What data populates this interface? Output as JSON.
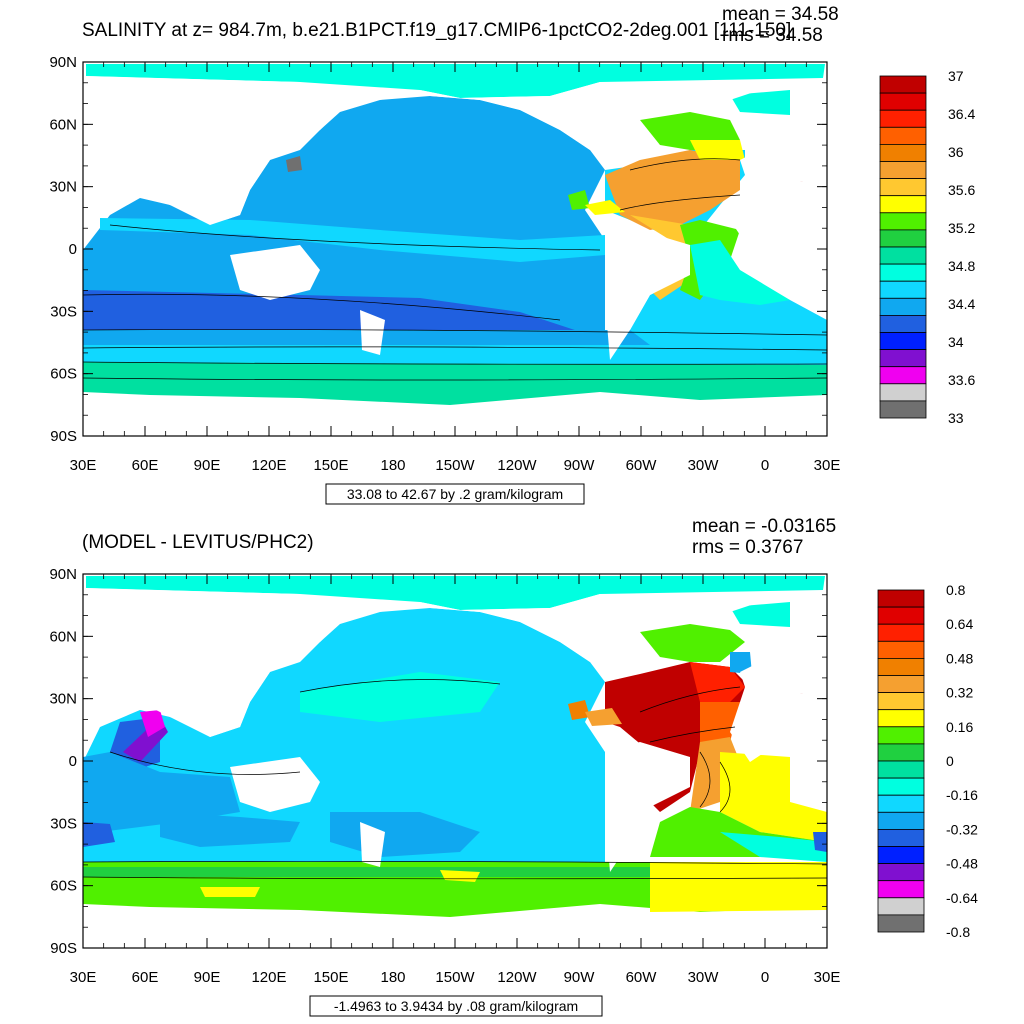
{
  "top": {
    "title": "SALINITY at z= 984.7m, b.e21.B1PCT.f19_g17.CMIP6-1pctCO2-2deg.001 [111-150]",
    "mean": "mean = 34.58",
    "rms": "rms = 34.58",
    "range_label": "33.08 to 42.67 by .2 gram/kilogram",
    "colorbar": {
      "colors": [
        "#c00000",
        "#e00000",
        "#ff2000",
        "#ff6000",
        "#f08000",
        "#f5a030",
        "#ffc830",
        "#ffff00",
        "#50f000",
        "#20d040",
        "#00e0a0",
        "#00ffe0",
        "#10d8ff",
        "#10a8f0",
        "#2060e0",
        "#0020ff",
        "#8010d0",
        "#f000f0",
        "#d0d0d0",
        "#707070"
      ],
      "labels": [
        "37",
        "36.4",
        "36",
        "35.6",
        "35.2",
        "34.8",
        "34.4",
        "34",
        "33.6",
        "33"
      ]
    }
  },
  "bottom": {
    "title": "(MODEL - LEVITUS/PHC2)",
    "mean": "mean = -0.03165",
    "rms": "rms = 0.3767",
    "range_label": "-1.4963 to 3.9434 by .08 gram/kilogram",
    "colorbar": {
      "colors": [
        "#c00000",
        "#e00000",
        "#ff2000",
        "#ff6000",
        "#f08000",
        "#f5a030",
        "#ffc830",
        "#ffff00",
        "#50f000",
        "#20d040",
        "#00e0a0",
        "#00ffe0",
        "#10d8ff",
        "#10a8f0",
        "#2060e0",
        "#0020ff",
        "#8010d0",
        "#f000f0",
        "#d0d0d0",
        "#707070"
      ],
      "labels": [
        "0.8",
        "0.64",
        "0.48",
        "0.32",
        "0.16",
        "0",
        "-0.16",
        "-0.32",
        "-0.48",
        "-0.64",
        "-0.8"
      ]
    }
  },
  "axes": {
    "lat_labels": [
      "90N",
      "60N",
      "30N",
      "0",
      "30S",
      "60S",
      "90S"
    ],
    "lon_labels": [
      "30E",
      "60E",
      "90E",
      "120E",
      "150E",
      "180",
      "150W",
      "120W",
      "90W",
      "60W",
      "30W",
      "0",
      "30E"
    ]
  }
}
